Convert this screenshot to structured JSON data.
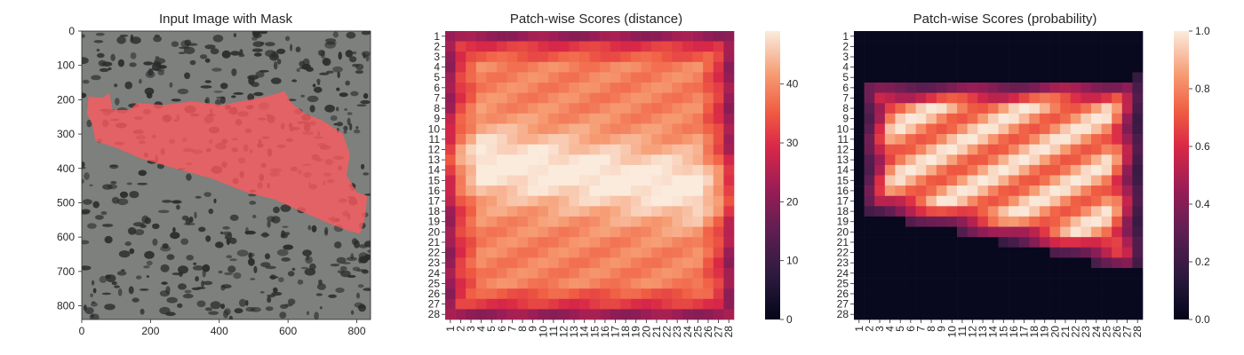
{
  "chart_data": [
    {
      "type": "image",
      "title": "Input Image with Mask",
      "x_ticks": [
        "0",
        "200",
        "400",
        "600",
        "800"
      ],
      "x_tick_values": [
        0,
        200,
        400,
        600,
        800
      ],
      "y_ticks": [
        "0",
        "100",
        "200",
        "300",
        "400",
        "500",
        "600",
        "700",
        "800"
      ],
      "y_tick_values": [
        0,
        100,
        200,
        300,
        400,
        500,
        600,
        700,
        800
      ],
      "xlim": [
        0,
        840
      ],
      "ylim": [
        840,
        0
      ],
      "mask_polygon": [
        [
          20,
          190
        ],
        [
          60,
          195
        ],
        [
          80,
          180
        ],
        [
          90,
          230
        ],
        [
          140,
          230
        ],
        [
          160,
          210
        ],
        [
          240,
          215
        ],
        [
          320,
          205
        ],
        [
          410,
          215
        ],
        [
          540,
          190
        ],
        [
          590,
          175
        ],
        [
          610,
          210
        ],
        [
          650,
          240
        ],
        [
          700,
          260
        ],
        [
          760,
          300
        ],
        [
          780,
          360
        ],
        [
          770,
          420
        ],
        [
          800,
          470
        ],
        [
          830,
          480
        ],
        [
          825,
          540
        ],
        [
          810,
          590
        ],
        [
          770,
          580
        ],
        [
          720,
          560
        ],
        [
          650,
          530
        ],
        [
          560,
          490
        ],
        [
          480,
          470
        ],
        [
          380,
          430
        ],
        [
          270,
          400
        ],
        [
          170,
          370
        ],
        [
          100,
          340
        ],
        [
          40,
          320
        ],
        [
          30,
          270
        ],
        [
          15,
          240
        ]
      ],
      "colors": {
        "mask": "#ff5a5f",
        "background": "#7d807d",
        "spots": "#2a2c2c"
      }
    },
    {
      "type": "heatmap",
      "title": "Patch-wise Scores (distance)",
      "x_categories": [
        "1",
        "2",
        "3",
        "4",
        "5",
        "6",
        "7",
        "8",
        "9",
        "10",
        "11",
        "12",
        "13",
        "14",
        "15",
        "16",
        "17",
        "18",
        "19",
        "20",
        "21",
        "22",
        "23",
        "24",
        "25",
        "26",
        "27",
        "28"
      ],
      "y_categories": [
        "1",
        "2",
        "3",
        "4",
        "5",
        "6",
        "7",
        "8",
        "9",
        "10",
        "11",
        "12",
        "13",
        "14",
        "15",
        "16",
        "17",
        "18",
        "19",
        "20",
        "21",
        "22",
        "23",
        "24",
        "25",
        "26",
        "27",
        "28"
      ],
      "colorbar": {
        "min": 0,
        "max": 49,
        "ticks": [
          0,
          10,
          20,
          30,
          40
        ],
        "tick_labels": [
          "0",
          "10",
          "20",
          "30",
          "40"
        ]
      },
      "colormap": "rocket"
    },
    {
      "type": "heatmap",
      "title": "Patch-wise Scores (probability)",
      "x_categories": [
        "1",
        "2",
        "3",
        "4",
        "5",
        "6",
        "7",
        "8",
        "9",
        "10",
        "11",
        "12",
        "13",
        "14",
        "15",
        "16",
        "17",
        "18",
        "19",
        "20",
        "21",
        "22",
        "23",
        "24",
        "25",
        "26",
        "27",
        "28"
      ],
      "y_categories": [
        "1",
        "2",
        "3",
        "4",
        "5",
        "6",
        "7",
        "8",
        "9",
        "10",
        "11",
        "12",
        "13",
        "14",
        "15",
        "16",
        "17",
        "18",
        "19",
        "20",
        "21",
        "22",
        "23",
        "24",
        "25",
        "26",
        "27",
        "28"
      ],
      "colorbar": {
        "min": 0.0,
        "max": 1.0,
        "ticks": [
          0.0,
          0.2,
          0.4,
          0.6,
          0.8,
          1.0
        ],
        "tick_labels": [
          "0.0",
          "0.2",
          "0.4",
          "0.6",
          "0.8",
          "1.0"
        ]
      },
      "colormap": "rocket"
    }
  ]
}
